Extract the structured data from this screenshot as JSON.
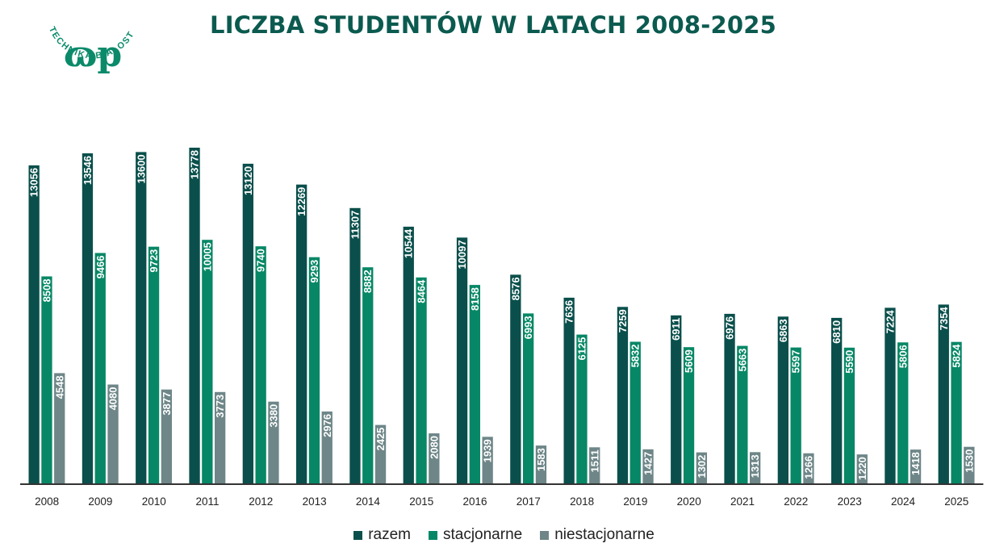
{
  "title": "LICZBA STUDENTÓW W LATACH 2008-2025",
  "logo": {
    "text": "POLITECHNIKA BIAŁOSTOCKA",
    "glyph": "ɷp"
  },
  "colors": {
    "razem": "#0a4f4b",
    "stacjonarne": "#078766",
    "niestacjonarne": "#6e8688",
    "title": "#0b5a4f",
    "axis": "#333333"
  },
  "chart_data": {
    "type": "bar",
    "title": "LICZBA STUDENTÓW W LATACH 2008-2025",
    "categories": [
      "2008",
      "2009",
      "2010",
      "2011",
      "2012",
      "2013",
      "2014",
      "2015",
      "2016",
      "2017",
      "2018",
      "2019",
      "2020",
      "2021",
      "2022",
      "2023",
      "2024",
      "2025"
    ],
    "series": [
      {
        "name": "razem",
        "values": [
          13056,
          13546,
          13600,
          13778,
          13120,
          12269,
          11307,
          10544,
          10097,
          8576,
          7636,
          7259,
          6911,
          6976,
          6863,
          6810,
          7224,
          7354
        ]
      },
      {
        "name": "stacjonarne",
        "values": [
          8508,
          9466,
          9723,
          10005,
          9740,
          9293,
          8882,
          8464,
          8158,
          6993,
          6125,
          5832,
          5609,
          5663,
          5597,
          5590,
          5806,
          5824
        ]
      },
      {
        "name": "niestacjonarne",
        "values": [
          4548,
          4080,
          3877,
          3773,
          3380,
          2976,
          2425,
          2080,
          1939,
          1583,
          1511,
          1427,
          1302,
          1313,
          1266,
          1220,
          1418,
          1530
        ]
      }
    ],
    "ylim": [
      0,
      14000
    ],
    "grid": false,
    "legend": "bottom-center",
    "data_labels": "inside-top-rotated"
  }
}
